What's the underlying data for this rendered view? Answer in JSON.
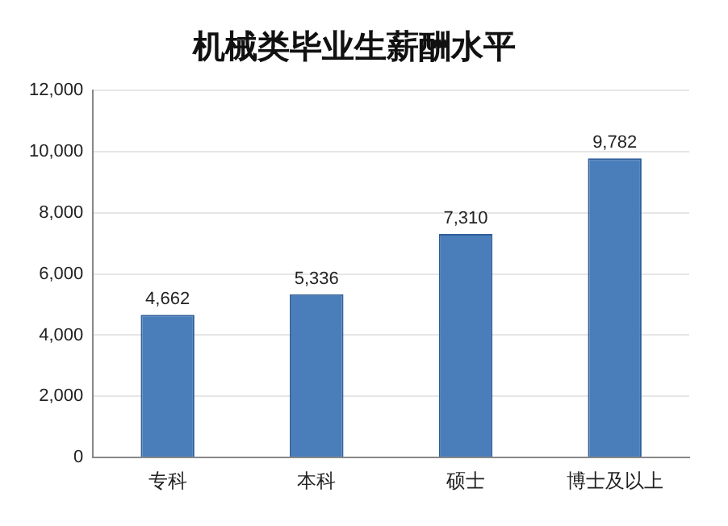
{
  "chart_data": {
    "type": "bar",
    "title": "机械类毕业生薪酬水平",
    "categories": [
      "专科",
      "本科",
      "硕士",
      "博士及以上"
    ],
    "values": [
      4662,
      5336,
      7310,
      9782
    ],
    "value_labels": [
      "4,662",
      "5,336",
      "7,310",
      "9,782"
    ],
    "color": "#4a7ebb",
    "ylim": [
      0,
      12000
    ],
    "yticks": [
      {
        "value": 0,
        "label": "0"
      },
      {
        "value": 2000,
        "label": "2,000"
      },
      {
        "value": 4000,
        "label": "4,000"
      },
      {
        "value": 6000,
        "label": "6,000"
      },
      {
        "value": 8000,
        "label": "8,000"
      },
      {
        "value": 10000,
        "label": "10,000"
      },
      {
        "value": 12000,
        "label": "12,000"
      }
    ],
    "grid": "y",
    "legend": false
  }
}
